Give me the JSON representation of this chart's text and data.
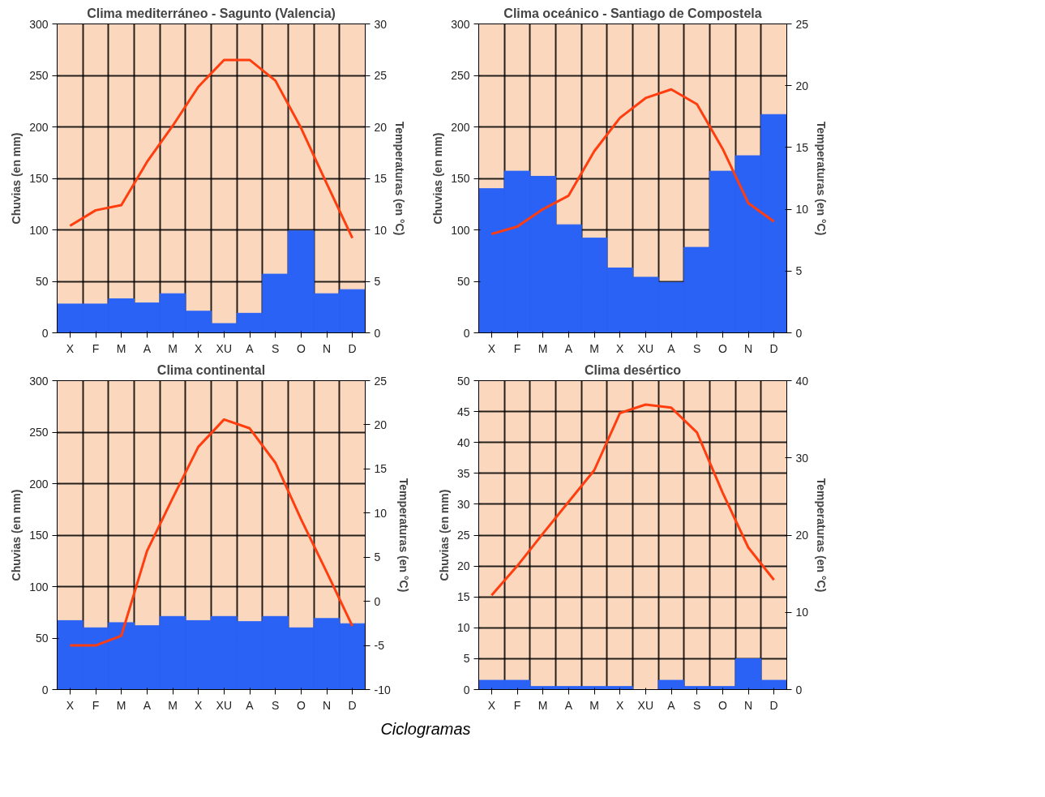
{
  "chart_data": [
    {
      "type": "bar",
      "title": "Clima mediterráneo - Sagunto (Valencia)",
      "ylabel": "Chuvias (en mm)",
      "y2label": "Temperaturas (en °C)",
      "categories": [
        "X",
        "F",
        "M",
        "A",
        "M",
        "X",
        "XU",
        "A",
        "S",
        "O",
        "N",
        "D"
      ],
      "ylim": [
        0,
        300
      ],
      "yticks": [
        0,
        50,
        100,
        150,
        200,
        250,
        300
      ],
      "y2lim": [
        0,
        30
      ],
      "y2ticks": [
        0,
        5,
        10,
        15,
        20,
        25,
        30
      ],
      "grid": true,
      "series": [
        {
          "color": "#2a62f5",
          "values": [
            28,
            28,
            33,
            29,
            38,
            21,
            9,
            19,
            57,
            99,
            38,
            42
          ]
        },
        {
          "type": "line",
          "axis": "y2",
          "color": "#ff3d0f",
          "values": [
            10.4,
            11.9,
            12.4,
            16.6,
            20.1,
            23.9,
            26.5,
            26.5,
            24.5,
            19.9,
            14.5,
            9.2
          ]
        }
      ]
    },
    {
      "type": "bar",
      "title": "Clima oceánico - Santiago de Compostela",
      "ylabel": "Chuvias (en mm)",
      "y2label": "Temperaturas (en °C)",
      "categories": [
        "X",
        "F",
        "M",
        "A",
        "M",
        "X",
        "XU",
        "A",
        "S",
        "O",
        "N",
        "D"
      ],
      "ylim": [
        0,
        300
      ],
      "yticks": [
        0,
        50,
        100,
        150,
        200,
        250,
        300
      ],
      "y2lim": [
        0,
        25
      ],
      "y2ticks": [
        0,
        5,
        10,
        15,
        20,
        25
      ],
      "grid": true,
      "series": [
        {
          "color": "#2a62f5",
          "values": [
            140,
            157,
            152,
            105,
            92,
            63,
            54,
            49,
            83,
            157,
            172,
            212
          ]
        },
        {
          "type": "line",
          "axis": "y2",
          "color": "#ff3d0f",
          "values": [
            8.0,
            8.6,
            10.0,
            11.1,
            14.7,
            17.4,
            19.0,
            19.7,
            18.5,
            14.9,
            10.5,
            9.0
          ]
        }
      ]
    },
    {
      "type": "bar",
      "title": "Clima continental",
      "ylabel": "Chuvias (en mm)",
      "y2label": "Temperaturas (en °C)",
      "categories": [
        "X",
        "F",
        "M",
        "A",
        "M",
        "X",
        "XU",
        "A",
        "S",
        "O",
        "N",
        "D"
      ],
      "ylim": [
        0,
        300
      ],
      "yticks": [
        0,
        50,
        100,
        150,
        200,
        250,
        300
      ],
      "y2lim": [
        -10,
        25
      ],
      "y2ticks": [
        -10,
        -5,
        0,
        5,
        10,
        15,
        20,
        25
      ],
      "grid": true,
      "series": [
        {
          "color": "#2a62f5",
          "values": [
            67,
            60,
            65,
            62,
            71,
            67,
            71,
            66,
            71,
            60,
            69,
            64
          ]
        },
        {
          "type": "line",
          "axis": "y2",
          "color": "#ff3d0f",
          "values": [
            -5.0,
            -5.0,
            -3.9,
            5.7,
            11.7,
            17.5,
            20.6,
            19.6,
            15.7,
            9.3,
            3.3,
            -2.8
          ]
        }
      ]
    },
    {
      "type": "bar",
      "title": "Clima desértico",
      "ylabel": "Chuvias (en mm)",
      "y2label": "Temperaturas (en °C)",
      "categories": [
        "X",
        "F",
        "M",
        "A",
        "M",
        "X",
        "XU",
        "A",
        "S",
        "O",
        "N",
        "D"
      ],
      "ylim": [
        0,
        50
      ],
      "yticks": [
        0,
        5,
        10,
        15,
        20,
        25,
        30,
        35,
        40,
        45,
        50
      ],
      "y2lim": [
        0,
        40
      ],
      "y2ticks": [
        0,
        10,
        20,
        30,
        40
      ],
      "grid": true,
      "annotations": [
        "Ciclogramas"
      ],
      "series": [
        {
          "color": "#2a62f5",
          "values": [
            1.5,
            1.5,
            0.5,
            0.5,
            0.5,
            0.5,
            0,
            1.5,
            0.5,
            0.5,
            5,
            1.5
          ]
        },
        {
          "type": "line",
          "axis": "y2",
          "color": "#ff3d0f",
          "values": [
            12.2,
            16.0,
            20.2,
            24.3,
            28.4,
            35.8,
            36.9,
            36.5,
            33.3,
            25.5,
            18.4,
            14.2
          ]
        }
      ]
    }
  ]
}
